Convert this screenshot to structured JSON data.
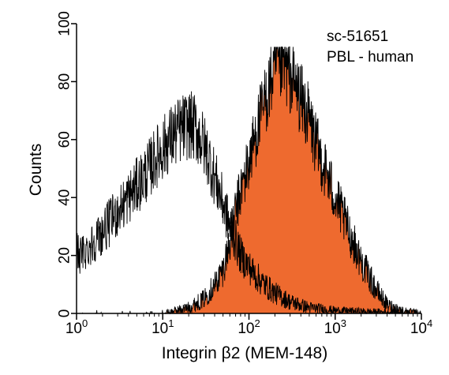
{
  "chart_data": {
    "type": "area",
    "title": "",
    "xlabel": "Integrin β2 (MEM-148)",
    "ylabel": "Counts",
    "x_scale": "log",
    "xlim": [
      1,
      10000
    ],
    "ylim": [
      0,
      100
    ],
    "x_ticks": [
      {
        "value": 1,
        "base": "10",
        "exp": "0"
      },
      {
        "value": 10,
        "base": "10",
        "exp": "1"
      },
      {
        "value": 100,
        "base": "10",
        "exp": "2"
      },
      {
        "value": 1000,
        "base": "10",
        "exp": "3"
      },
      {
        "value": 10000,
        "base": "10",
        "exp": "4"
      }
    ],
    "y_ticks": [
      "0",
      "20",
      "40",
      "60",
      "80",
      "100"
    ],
    "grid": false,
    "annotations": [
      "sc-51651",
      "PBL - human"
    ],
    "series": [
      {
        "style": "outline",
        "color": "#000000",
        "x": [
          1,
          1.1,
          1.3,
          1.6,
          2,
          2.5,
          3,
          4,
          5,
          6,
          7,
          8,
          10,
          12,
          14,
          17,
          20,
          24,
          28,
          33,
          40,
          50,
          60,
          70,
          80,
          100,
          120,
          150,
          200,
          300,
          500,
          1000,
          10000
        ],
        "y": [
          22,
          20,
          22,
          25,
          28,
          32,
          35,
          40,
          44,
          47,
          50,
          53,
          57,
          60,
          62,
          64,
          65,
          64,
          60,
          55,
          47,
          38,
          30,
          25,
          20,
          16,
          13,
          10,
          7,
          4,
          2,
          1,
          0
        ]
      },
      {
        "style": "filled",
        "color": "#ee6a2f",
        "x": [
          1,
          10,
          20,
          30,
          40,
          50,
          60,
          70,
          80,
          100,
          120,
          150,
          180,
          200,
          250,
          300,
          350,
          400,
          500,
          600,
          800,
          1000,
          1500,
          2000,
          3000,
          4000,
          6000,
          10000
        ],
        "y": [
          0,
          0,
          2,
          5,
          10,
          15,
          25,
          35,
          42,
          52,
          62,
          72,
          80,
          84,
          86,
          82,
          78,
          74,
          67,
          58,
          48,
          40,
          27,
          18,
          8,
          3,
          1,
          0
        ]
      }
    ]
  }
}
